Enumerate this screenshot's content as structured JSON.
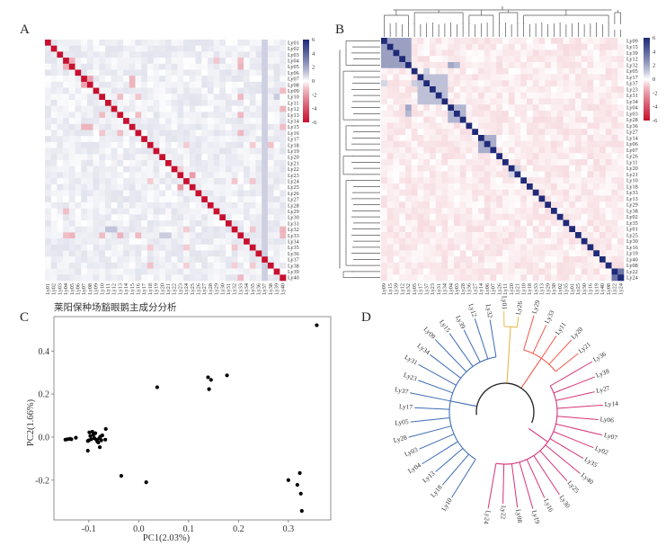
{
  "figure": {
    "panels": [
      "A",
      "B",
      "C",
      "D"
    ]
  },
  "colors": {
    "heat_negative": "#c8102e",
    "heat_zero": "#ffffff",
    "heat_positive": "#1f2a78",
    "dendro_line": "#555555",
    "pca_point": "#000000",
    "clade_blue": "#3d6db5",
    "clade_yellow": "#e8b84a",
    "clade_orange": "#f2594b",
    "clade_magenta": "#d6337a",
    "clade_root": "#222222"
  },
  "chart_data": [
    {
      "panel": "A",
      "type": "heatmap",
      "title": "",
      "row_labels": [
        "Ly01",
        "Ly02",
        "Ly03",
        "Ly04",
        "Ly05",
        "Ly06",
        "Ly07",
        "Ly08",
        "Ly09",
        "Ly10",
        "Ly11",
        "Ly12",
        "Ly13",
        "Ly14",
        "Ly15",
        "Ly16",
        "Ly17",
        "Ly18",
        "Ly19",
        "Ly20",
        "Ly21",
        "Ly22",
        "Ly23",
        "Ly24",
        "Ly25",
        "Ly26",
        "Ly27",
        "Ly28",
        "Ly29",
        "Ly30",
        "Ly31",
        "Ly32",
        "Ly33",
        "Ly34",
        "Ly35",
        "Ly36",
        "Ly37",
        "Ly38",
        "Ly39",
        "Ly40"
      ],
      "col_labels": [
        "Ly01",
        "Ly02",
        "Ly03",
        "Ly04",
        "Ly05",
        "Ly06",
        "Ly07",
        "Ly08",
        "Ly09",
        "Ly10",
        "Ly11",
        "Ly12",
        "Ly13",
        "Ly14",
        "Ly15",
        "Ly16",
        "Ly17",
        "Ly18",
        "Ly19",
        "Ly20",
        "Ly21",
        "Ly22",
        "Ly23",
        "Ly24",
        "Ly25",
        "Ly26",
        "Ly27",
        "Ly28",
        "Ly29",
        "Ly30",
        "Ly31",
        "Ly32",
        "Ly33",
        "Ly34",
        "Ly35",
        "Ly36",
        "Ly37",
        "Ly38",
        "Ly39",
        "Ly40"
      ],
      "diagonal_value": -6,
      "background_value": 0.3,
      "highlights": [
        {
          "r": 3,
          "c": 4,
          "v": -1.5
        },
        {
          "r": 4,
          "c": 3,
          "v": -1.5
        },
        {
          "r": 6,
          "c": 7,
          "v": -1.8
        },
        {
          "r": 7,
          "c": 6,
          "v": -1.8
        },
        {
          "r": 6,
          "c": 14,
          "v": -1.4
        },
        {
          "r": 7,
          "c": 14,
          "v": -1.4
        },
        {
          "r": 14,
          "c": 6,
          "v": -1.4
        },
        {
          "r": 14,
          "c": 7,
          "v": -1.4
        },
        {
          "r": 22,
          "c": 24,
          "v": -2.0
        },
        {
          "r": 24,
          "c": 22,
          "v": -2.0
        },
        {
          "r": 21,
          "c": 22,
          "v": -0.8
        },
        {
          "r": 3,
          "c": 32,
          "v": -1.2
        },
        {
          "r": 4,
          "c": 32,
          "v": -1.4
        },
        {
          "r": 9,
          "c": 32,
          "v": -1.3
        },
        {
          "r": 12,
          "c": 32,
          "v": -1.3
        },
        {
          "r": 15,
          "c": 32,
          "v": -1.3
        },
        {
          "r": 32,
          "c": 9,
          "v": -1.2
        },
        {
          "r": 32,
          "c": 12,
          "v": -1.4
        },
        {
          "r": 32,
          "c": 15,
          "v": -1.3
        },
        {
          "r": 32,
          "c": 3,
          "v": -1.2
        },
        {
          "r": 32,
          "c": 4,
          "v": -1.4
        },
        {
          "r": 39,
          "c": 32,
          "v": -1.3
        },
        {
          "r": 32,
          "c": 39,
          "v": -1.3
        },
        {
          "r": 9,
          "c": 12,
          "v": -1.2
        },
        {
          "r": 12,
          "c": 9,
          "v": -1.2
        },
        {
          "r": 9,
          "c": 15,
          "v": -1.0
        },
        {
          "r": 15,
          "c": 9,
          "v": -1.0
        },
        {
          "r": 12,
          "c": 15,
          "v": -1.2
        },
        {
          "r": 15,
          "c": 12,
          "v": -1.2
        },
        {
          "r": 3,
          "c": 28,
          "v": -1.0
        },
        {
          "r": 28,
          "c": 3,
          "v": -1.2
        },
        {
          "r": 8,
          "c": 39,
          "v": -1.2
        },
        {
          "r": 11,
          "c": 39,
          "v": -1.4
        },
        {
          "r": 14,
          "c": 39,
          "v": -1.2
        },
        {
          "r": 31,
          "c": 39,
          "v": -1.4
        },
        {
          "r": 17,
          "c": 23,
          "v": -0.9
        },
        {
          "r": 17,
          "c": 34,
          "v": -0.9
        },
        {
          "r": 17,
          "c": 37,
          "v": -1.1
        },
        {
          "r": 23,
          "c": 17,
          "v": -0.9
        },
        {
          "r": 23,
          "c": 31,
          "v": -1.0
        },
        {
          "r": 23,
          "c": 34,
          "v": -1.0
        },
        {
          "r": 31,
          "c": 23,
          "v": -0.9
        },
        {
          "r": 31,
          "c": 34,
          "v": -1.0
        },
        {
          "r": 34,
          "c": 17,
          "v": -0.9
        },
        {
          "r": 34,
          "c": 23,
          "v": -0.9
        },
        {
          "r": 34,
          "c": 31,
          "v": -1.0
        },
        {
          "r": 37,
          "c": 17,
          "v": -1.1
        },
        {
          "r": 37,
          "c": 23,
          "v": -0.8
        },
        {
          "r": 37,
          "c": 31,
          "v": -0.8
        },
        {
          "r": 37,
          "c": 34,
          "v": -0.9
        },
        {
          "r": 9,
          "c": 38,
          "v": 1.0
        },
        {
          "r": 31,
          "c": 10,
          "v": 1.2
        },
        {
          "r": 31,
          "c": 11,
          "v": 1.2
        },
        {
          "r": 32,
          "c": 19,
          "v": 1.0
        },
        {
          "r": 32,
          "c": 20,
          "v": 1.0
        }
      ],
      "light_blue_column": "Ly37",
      "colorbar": {
        "ticks": [
          6,
          4,
          2,
          0,
          -2,
          -4,
          -6
        ],
        "range": [
          -6,
          6
        ]
      }
    },
    {
      "panel": "B",
      "type": "heatmap",
      "title": "",
      "order": [
        "Ly09",
        "Ly15",
        "Ly39",
        "Ly12",
        "Ly32",
        "Ly05",
        "Ly17",
        "Ly37",
        "Ly23",
        "Ly31",
        "Ly34",
        "Ly04",
        "Ly03",
        "Ly28",
        "Ly36",
        "Ly27",
        "Ly14",
        "Ly06",
        "Ly07",
        "Ly26",
        "Ly11",
        "Ly20",
        "Ly21",
        "Ly10",
        "Ly18",
        "Ly33",
        "Ly13",
        "Ly29",
        "Ly38",
        "Ly02",
        "Ly35",
        "Ly01",
        "Ly25",
        "Ly30",
        "Ly16",
        "Ly19",
        "Ly40",
        "Ly08",
        "Ly22",
        "Ly24"
      ],
      "diagonal_value": 6,
      "background_value": -0.4,
      "blocks": [
        {
          "start": 0,
          "end": 4,
          "v": 2.2
        },
        {
          "start": 6,
          "end": 10,
          "v": 1.3
        },
        {
          "start": 11,
          "end": 13,
          "v": 1.6
        },
        {
          "start": 16,
          "end": 18,
          "v": 1.8
        },
        {
          "start": 21,
          "end": 22,
          "v": 0.8
        },
        {
          "start": 38,
          "end": 39,
          "v": 3.5
        }
      ],
      "extra": [
        {
          "r": 4,
          "c": 11,
          "v": 2.0
        },
        {
          "r": 4,
          "c": 12,
          "v": 1.5
        },
        {
          "r": 11,
          "c": 4,
          "v": 2.0
        },
        {
          "r": 12,
          "c": 4,
          "v": 1.5
        },
        {
          "r": 5,
          "c": 7,
          "v": 1.0
        },
        {
          "r": 7,
          "c": 5,
          "v": 1.0
        },
        {
          "r": 7,
          "c": 0,
          "v": 0.8
        }
      ],
      "colorbar": {
        "ticks": [
          6,
          4,
          2,
          0,
          -2,
          -4,
          -6
        ],
        "range": [
          -6,
          6
        ]
      },
      "dendrogram": "hierarchical clustering shown on top and left"
    },
    {
      "panel": "C",
      "type": "scatter",
      "title": "莱阳保种场豁眼鹅主成分分析",
      "xlabel": "PC1(2.03%)",
      "ylabel": "PC2(1.66%)",
      "xlim": [
        -0.17,
        0.385
      ],
      "ylim": [
        -0.385,
        0.56
      ],
      "xticks": [
        -0.1,
        0.0,
        0.1,
        0.2,
        0.3
      ],
      "xtick_labels": [
        "-0.1",
        "0.0",
        "0.1",
        "0.2",
        "0.3"
      ],
      "yticks": [
        -0.2,
        0.0,
        0.2,
        0.4
      ],
      "ytick_labels": [
        "-0.2",
        "0.0",
        "0.2",
        "0.4"
      ],
      "grid": false,
      "points": [
        {
          "x": 0.357,
          "y": 0.52
        },
        {
          "x": 0.177,
          "y": 0.287
        },
        {
          "x": 0.139,
          "y": 0.278
        },
        {
          "x": 0.145,
          "y": 0.266
        },
        {
          "x": 0.141,
          "y": 0.223
        },
        {
          "x": 0.037,
          "y": 0.232
        },
        {
          "x": -0.066,
          "y": 0.038
        },
        {
          "x": -0.147,
          "y": -0.012
        },
        {
          "x": -0.143,
          "y": -0.01
        },
        {
          "x": -0.138,
          "y": -0.008
        },
        {
          "x": -0.135,
          "y": -0.01
        },
        {
          "x": -0.126,
          "y": -0.003
        },
        {
          "x": -0.102,
          "y": -0.018
        },
        {
          "x": -0.099,
          "y": 0.022
        },
        {
          "x": -0.1,
          "y": -0.015
        },
        {
          "x": -0.097,
          "y": 0.005
        },
        {
          "x": -0.095,
          "y": -0.01
        },
        {
          "x": -0.093,
          "y": 0.025
        },
        {
          "x": -0.091,
          "y": 0.01
        },
        {
          "x": -0.089,
          "y": -0.005
        },
        {
          "x": -0.087,
          "y": 0.018
        },
        {
          "x": -0.085,
          "y": -0.012
        },
        {
          "x": -0.083,
          "y": -0.02
        },
        {
          "x": -0.081,
          "y": -0.025
        },
        {
          "x": -0.079,
          "y": -0.005
        },
        {
          "x": -0.077,
          "y": 0.002
        },
        {
          "x": -0.075,
          "y": -0.015
        },
        {
          "x": -0.073,
          "y": 0.008
        },
        {
          "x": -0.067,
          "y": -0.012
        },
        {
          "x": -0.102,
          "y": -0.063
        },
        {
          "x": -0.078,
          "y": -0.047
        },
        {
          "x": -0.035,
          "y": -0.18
        },
        {
          "x": 0.015,
          "y": -0.21
        },
        {
          "x": 0.3,
          "y": -0.2
        },
        {
          "x": 0.323,
          "y": -0.167
        },
        {
          "x": 0.318,
          "y": -0.222
        },
        {
          "x": 0.325,
          "y": -0.263
        },
        {
          "x": 0.327,
          "y": -0.343
        }
      ]
    },
    {
      "panel": "D",
      "type": "tree",
      "title": "",
      "clades": [
        {
          "name": "blue",
          "color": "#3d6db5",
          "leaves": [
            "Ly10",
            "Ly18",
            "Ly13",
            "Ly04",
            "Ly03",
            "Ly28",
            "Ly05",
            "Ly17",
            "Ly37",
            "Ly23",
            "Ly31",
            "Ly34",
            "Ly09",
            "Ly15",
            "Ly39",
            "Ly12",
            "Ly32"
          ]
        },
        {
          "name": "yellow",
          "color": "#e8b84a",
          "leaves": [
            "Ly01",
            "Ly26"
          ]
        },
        {
          "name": "orange",
          "color": "#f2594b",
          "leaves": [
            "Ly29",
            "Ly33",
            "Ly11",
            "Ly20",
            "Ly21"
          ]
        },
        {
          "name": "magenta",
          "color": "#d6337a",
          "leaves": [
            "Ly36",
            "Ly38",
            "Ly27",
            "Ly14",
            "Ly06",
            "Ly07",
            "Ly02",
            "Ly35",
            "Ly40",
            "Ly25",
            "Ly30",
            "Ly16",
            "Ly19",
            "Ly08",
            "Ly22",
            "Ly24"
          ]
        }
      ],
      "leaf_order": [
        "Ly10",
        "Ly18",
        "Ly13",
        "Ly04",
        "Ly03",
        "Ly28",
        "Ly05",
        "Ly17",
        "Ly37",
        "Ly23",
        "Ly31",
        "Ly34",
        "Ly09",
        "Ly15",
        "Ly39",
        "Ly12",
        "Ly32",
        "Ly01",
        "Ly26",
        "Ly29",
        "Ly33",
        "Ly11",
        "Ly20",
        "Ly21",
        "Ly36",
        "Ly38",
        "Ly27",
        "Ly14",
        "Ly06",
        "Ly07",
        "Ly02",
        "Ly35",
        "Ly40",
        "Ly25",
        "Ly30",
        "Ly16",
        "Ly19",
        "Ly08",
        "Ly22",
        "Ly24"
      ]
    }
  ]
}
